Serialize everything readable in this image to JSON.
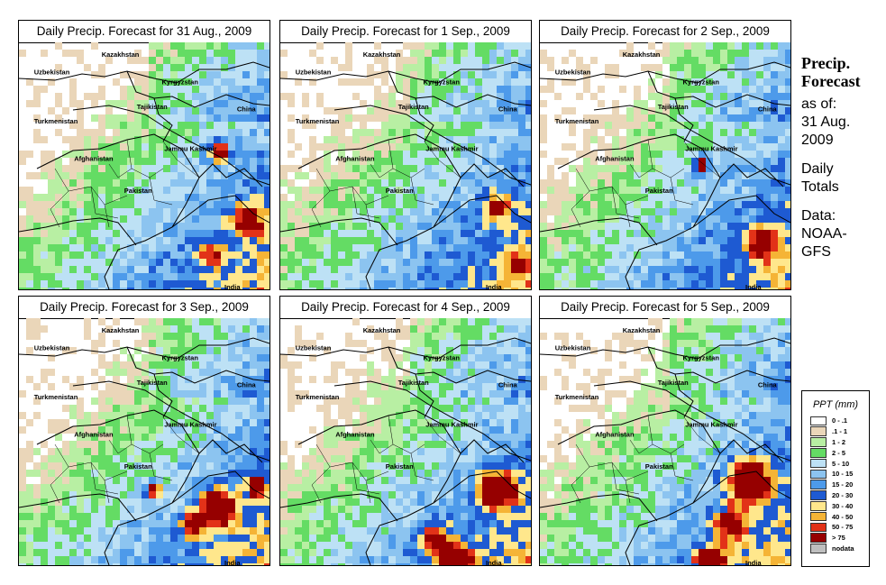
{
  "panels": [
    {
      "title": "Daily Precip. Forecast for  31 Aug., 2009",
      "seed": 11,
      "hotspots": [
        [
          0.78,
          0.43,
          5,
          10
        ],
        [
          0.9,
          0.7,
          4,
          14
        ],
        [
          0.75,
          0.85,
          3,
          12
        ]
      ]
    },
    {
      "title": "Daily Precip. Forecast for  1 Sep., 2009",
      "seed": 23,
      "hotspots": [
        [
          0.85,
          0.65,
          3,
          14
        ],
        [
          0.93,
          0.88,
          3,
          10
        ]
      ]
    },
    {
      "title": "Daily Precip. Forecast for  2 Sep., 2009",
      "seed": 37,
      "hotspots": [
        [
          0.63,
          0.48,
          5,
          8
        ],
        [
          0.88,
          0.8,
          4,
          14
        ]
      ]
    },
    {
      "title": "Daily Precip. Forecast for  3 Sep., 2009",
      "seed": 41,
      "hotspots": [
        [
          0.52,
          0.68,
          5,
          7
        ],
        [
          0.78,
          0.75,
          6,
          16
        ],
        [
          0.68,
          0.82,
          4,
          12
        ],
        [
          0.93,
          0.67,
          5,
          8
        ]
      ]
    },
    {
      "title": "Daily Precip. Forecast for  4 Sep., 2009",
      "seed": 53,
      "hotspots": [
        [
          0.85,
          0.68,
          7,
          16
        ],
        [
          0.68,
          0.97,
          7,
          14
        ],
        [
          0.6,
          0.88,
          4,
          14
        ]
      ]
    },
    {
      "title": "Daily Precip. Forecast for  5 Sep., 2009",
      "seed": 67,
      "hotspots": [
        [
          0.82,
          0.65,
          7,
          18
        ],
        [
          0.67,
          0.97,
          7,
          12
        ],
        [
          0.75,
          0.82,
          4,
          16
        ]
      ]
    }
  ],
  "map_labels": {
    "kazakhstan": "Kazakhstan",
    "uzbekistan": "Uzbekistan",
    "kyrgyzstan": "Kyrgyzstan",
    "tajikistan": "Tajikistan",
    "china": "China",
    "turkmenistan": "Turkmenistan",
    "afghanistan": "Afghanistan",
    "jammu_kashmir": "Jammu Kashmir",
    "pakistan": "Pakistan",
    "india": "India"
  },
  "side": {
    "title_line1": "Precip.",
    "title_line2": "Forecast",
    "asof_line1": "as of:",
    "asof_line2": "31 Aug.",
    "asof_line3": "2009",
    "daily_line1": "Daily",
    "daily_line2": "Totals",
    "data_line1": "Data:",
    "data_line2": "NOAA-",
    "data_line3": "GFS"
  },
  "legend": {
    "title": "PPT (mm)",
    "items": [
      {
        "label": "0 - .1",
        "color": "#ffffff"
      },
      {
        "label": ".1 - 1",
        "color": "#ead6b9"
      },
      {
        "label": "1 - 2",
        "color": "#b8efa3"
      },
      {
        "label": "2 - 5",
        "color": "#64dc64"
      },
      {
        "label": "5 - 10",
        "color": "#bde1f5"
      },
      {
        "label": "10 - 15",
        "color": "#8cc4f0"
      },
      {
        "label": "15 - 20",
        "color": "#4d9aea"
      },
      {
        "label": "20 - 30",
        "color": "#1e5ad2"
      },
      {
        "label": "30 - 40",
        "color": "#ffe78c"
      },
      {
        "label": "40 - 50",
        "color": "#f5b436"
      },
      {
        "label": "50 - 75",
        "color": "#e23218"
      },
      {
        "label": "> 75",
        "color": "#960000"
      },
      {
        "label": "nodata",
        "color": "#bfbfbf"
      }
    ]
  }
}
